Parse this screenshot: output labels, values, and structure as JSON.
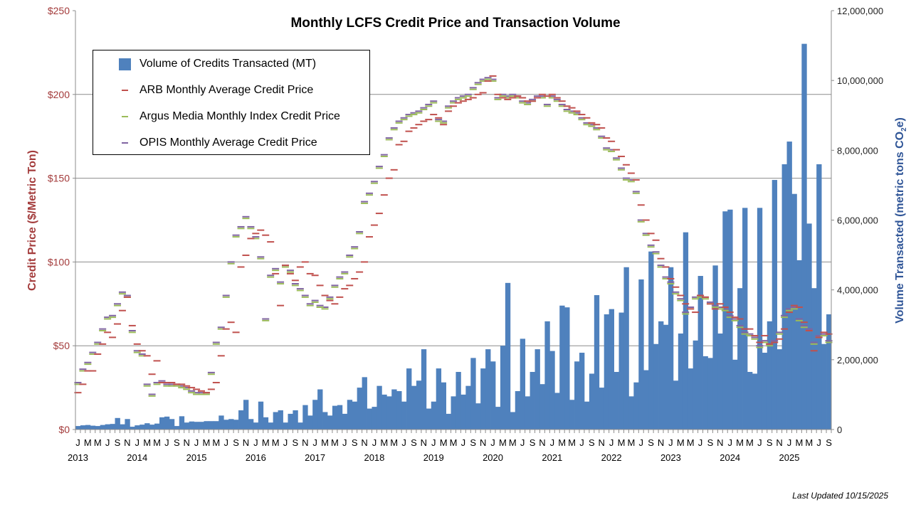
{
  "chart_data": {
    "type": "bar+scatter",
    "title": "Monthly LCFS Credit Price and Transaction Volume",
    "ylabel_left": "Credit Price  ($/Metric  Ton)",
    "ylabel_right": "Volume Transacted (metric tons CO",
    "ylabel_right_sub": "2",
    "ylabel_right_end": "e)",
    "ylim_left": [
      0,
      250
    ],
    "ylim_right": [
      0,
      12000000
    ],
    "yticks_left": [
      "$0",
      "$50",
      "$100",
      "$150",
      "$200",
      "$250"
    ],
    "yticks_right": [
      "0",
      "2,000,000",
      "4,000,000",
      "6,000,000",
      "8,000,000",
      "10,000,000",
      "12,000,000"
    ],
    "x_start": "2013-01",
    "x_end": "2025-09",
    "month_tick_labels": [
      "J",
      "",
      "M",
      "",
      "M",
      "",
      "J",
      "",
      "S",
      "",
      "N",
      ""
    ],
    "years": [
      "2013",
      "2014",
      "2015",
      "2016",
      "2017",
      "2018",
      "2019",
      "2020",
      "2021",
      "2022",
      "2023",
      "2024",
      "2025"
    ],
    "grid": "horizontal",
    "legend_placement": "top-left",
    "colors": {
      "volume": "#4f81bd",
      "arb": "#c0504d",
      "argus": "#9bbb59",
      "opis": "#8064a2",
      "left_axis": "#a33b3b",
      "right_axis": "#2f5597"
    },
    "series": [
      {
        "name": "Volume of Credits Transacted (MT)",
        "axis": "right",
        "kind": "bar",
        "unit": "million MT",
        "values": [
          0.1,
          0.12,
          0.13,
          0.11,
          0.1,
          0.13,
          0.15,
          0.16,
          0.33,
          0.15,
          0.3,
          0.08,
          0.12,
          0.14,
          0.18,
          0.14,
          0.17,
          0.35,
          0.37,
          0.3,
          0.1,
          0.38,
          0.2,
          0.23,
          0.22,
          0.22,
          0.24,
          0.24,
          0.24,
          0.4,
          0.28,
          0.3,
          0.28,
          0.55,
          0.85,
          0.3,
          0.2,
          0.8,
          0.35,
          0.2,
          0.5,
          0.55,
          0.2,
          0.45,
          0.55,
          0.2,
          0.7,
          0.4,
          0.85,
          1.15,
          0.5,
          0.4,
          0.68,
          0.7,
          0.45,
          0.85,
          0.8,
          1.2,
          1.5,
          0.6,
          0.65,
          1.25,
          1.0,
          0.95,
          1.15,
          1.1,
          0.8,
          1.75,
          1.25,
          1.4,
          2.3,
          0.6,
          0.8,
          1.75,
          1.35,
          0.45,
          0.95,
          1.65,
          1.0,
          1.25,
          2.05,
          0.75,
          1.75,
          2.3,
          1.95,
          0.65,
          2.4,
          4.2,
          0.5,
          1.1,
          2.6,
          0.95,
          1.65,
          2.3,
          1.3,
          3.1,
          2.25,
          1.05,
          3.55,
          3.5,
          0.85,
          1.95,
          2.2,
          0.8,
          1.6,
          3.85,
          1.2,
          3.3,
          3.45,
          1.65,
          3.35,
          4.65,
          0.95,
          1.35,
          4.3,
          1.7,
          5.1,
          2.45,
          3.1,
          3.0,
          4.65,
          1.4,
          2.75,
          5.65,
          1.75,
          2.55,
          4.4,
          2.1,
          2.05,
          4.7,
          2.75,
          6.25,
          6.3,
          2.0,
          4.05,
          6.35,
          1.65,
          1.6,
          6.35,
          2.2,
          3.1,
          7.15,
          2.3,
          7.6,
          8.25,
          6.75,
          4.85,
          11.05,
          5.9,
          4.05,
          7.6,
          2.45,
          3.3
        ]
      },
      {
        "name": "ARB Monthly Average Credit Price",
        "axis": "left",
        "kind": "dash",
        "values": [
          22,
          27,
          35,
          35,
          45,
          51,
          58,
          55,
          63,
          71,
          79,
          62,
          51,
          47,
          44,
          33,
          41,
          28,
          28,
          28,
          27,
          27,
          26,
          25,
          24,
          23,
          22,
          24,
          28,
          44,
          60,
          64,
          58,
          97,
          104,
          114,
          117,
          119,
          116,
          112,
          93,
          74,
          98,
          93,
          89,
          97,
          100,
          93,
          92,
          86,
          80,
          77,
          75,
          79,
          84,
          86,
          90,
          94,
          100,
          115,
          122,
          129,
          140,
          150,
          155,
          170,
          172,
          178,
          180,
          182,
          184,
          185,
          188,
          186,
          182,
          190,
          193,
          195,
          196,
          197,
          198,
          200,
          201,
          208,
          211,
          200,
          198,
          197,
          198,
          199,
          198,
          196,
          196,
          198,
          200,
          199,
          200,
          198,
          196,
          193,
          192,
          190,
          188,
          186,
          183,
          182,
          180,
          174,
          172,
          167,
          163,
          158,
          153,
          149,
          134,
          125,
          117,
          113,
          102,
          97,
          90,
          85,
          80,
          75,
          72,
          70,
          80,
          79,
          75,
          72,
          75,
          73,
          70,
          67,
          66,
          60,
          60,
          56,
          52,
          56,
          51,
          52,
          54,
          60,
          70,
          74,
          73,
          64,
          59,
          47,
          55,
          58,
          57
        ]
      },
      {
        "name": "Argus Media Monthly Index Credit Price",
        "axis": "left",
        "kind": "dash",
        "values": [
          27,
          35,
          39,
          45,
          51,
          59,
          66,
          67,
          74,
          81,
          79,
          58,
          46,
          44,
          26,
          20,
          27,
          28,
          26,
          26,
          26,
          25,
          24,
          22,
          21,
          21,
          21,
          33,
          51,
          60,
          79,
          99,
          115,
          120,
          126,
          120,
          114,
          102,
          65,
          91,
          95,
          87,
          97,
          94,
          86,
          83,
          79,
          74,
          76,
          73,
          72,
          78,
          85,
          90,
          93,
          103,
          108,
          117,
          135,
          140,
          147,
          156,
          163,
          173,
          179,
          183,
          185,
          187,
          188,
          189,
          191,
          193,
          195,
          184,
          183,
          192,
          195,
          197,
          198,
          199,
          203,
          206,
          208,
          209,
          208,
          197,
          199,
          198,
          199,
          198,
          195,
          194,
          196,
          198,
          198,
          193,
          198,
          196,
          193,
          190,
          189,
          188,
          185,
          182,
          181,
          179,
          174,
          167,
          166,
          161,
          155,
          149,
          148,
          141,
          124,
          116,
          109,
          105,
          97,
          90,
          87,
          81,
          77,
          69,
          72,
          78,
          79,
          78,
          75,
          73,
          72,
          71,
          67,
          65,
          61,
          57,
          56,
          54,
          49,
          52,
          50,
          52,
          57,
          67,
          71,
          72,
          65,
          61,
          59,
          51,
          55,
          56,
          52
        ]
      },
      {
        "name": "OPIS Monthly Average Credit Price",
        "axis": "left",
        "kind": "dash",
        "values": [
          28,
          36,
          40,
          46,
          52,
          60,
          67,
          68,
          75,
          82,
          80,
          59,
          47,
          45,
          27,
          21,
          28,
          29,
          27,
          27,
          27,
          26,
          25,
          23,
          22,
          22,
          22,
          34,
          52,
          61,
          80,
          100,
          116,
          121,
          127,
          121,
          115,
          103,
          66,
          92,
          96,
          88,
          98,
          95,
          87,
          84,
          80,
          75,
          77,
          74,
          73,
          79,
          86,
          91,
          94,
          104,
          109,
          118,
          136,
          141,
          148,
          157,
          164,
          174,
          180,
          184,
          186,
          188,
          189,
          190,
          192,
          194,
          196,
          185,
          184,
          193,
          196,
          198,
          199,
          200,
          204,
          207,
          209,
          210,
          209,
          198,
          200,
          199,
          200,
          199,
          196,
          195,
          197,
          199,
          199,
          194,
          199,
          197,
          194,
          191,
          190,
          189,
          186,
          183,
          182,
          180,
          175,
          168,
          167,
          162,
          156,
          150,
          149,
          142,
          125,
          117,
          110,
          106,
          98,
          91,
          88,
          82,
          78,
          70,
          73,
          79,
          80,
          79,
          76,
          74,
          73,
          72,
          68,
          66,
          62,
          58,
          57,
          55,
          50,
          53,
          51,
          53,
          58,
          68,
          72,
          73,
          66,
          62,
          60,
          52,
          56,
          57,
          53
        ]
      }
    ]
  },
  "footer": {
    "last_updated": "Last Updated 10/15/2025"
  }
}
